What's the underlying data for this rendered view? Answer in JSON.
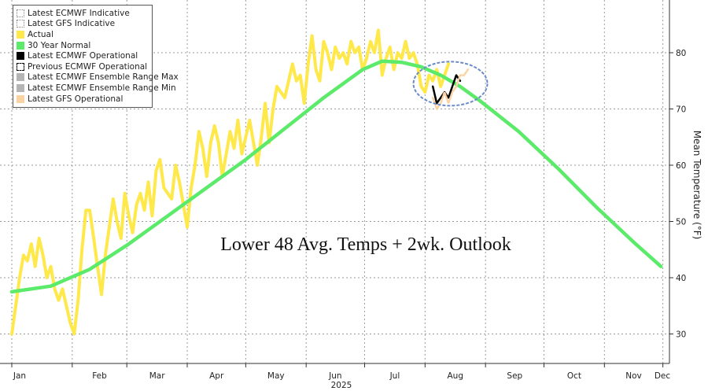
{
  "chart_data": {
    "type": "line",
    "title": "Lower 48 Avg. Temps + 2wk. Outlook",
    "ylabel": "Mean Temperature (°F)",
    "xlabel": "2025",
    "ylim": [
      24,
      89
    ],
    "yticks": [
      30,
      40,
      50,
      60,
      70,
      80
    ],
    "x_months": [
      "Jan",
      "Feb",
      "Mar",
      "Apr",
      "May",
      "Jun",
      "Jul",
      "Aug",
      "Sep",
      "Oct",
      "Nov",
      "Dec"
    ],
    "grid": true,
    "legend_position": "top-left",
    "legend": [
      {
        "label": "Latest ECMWF Indicative",
        "color": "#ffffff",
        "style": "dotted-outline"
      },
      {
        "label": "Latest GFS Indicative",
        "color": "#ffffff",
        "style": "dotted-outline"
      },
      {
        "label": "Actual",
        "color": "#ffe84a",
        "style": "fill"
      },
      {
        "label": "30 Year Normal",
        "color": "#5cea6a",
        "style": "fill"
      },
      {
        "label": "Latest ECMWF Operational",
        "color": "#000000",
        "style": "fill"
      },
      {
        "label": "Previous ECMWF Operational",
        "color": "#000000",
        "style": "dashed-outline"
      },
      {
        "label": "Latest ECMWF Ensemble Range Max",
        "color": "#b4b4b4",
        "style": "fill"
      },
      {
        "label": "Latest ECMWF Ensemble Range Min",
        "color": "#b4b4b4",
        "style": "fill"
      },
      {
        "label": "Latest GFS Operational",
        "color": "#fbd3a3",
        "style": "fill"
      }
    ],
    "series": [
      {
        "name": "Actual",
        "color": "#ffe84a",
        "x_days": [
          0,
          2,
          4,
          6,
          8,
          10,
          12,
          14,
          16,
          18,
          20,
          22,
          24,
          26,
          28,
          30,
          32,
          34,
          36,
          38,
          40,
          42,
          44,
          46,
          48,
          50,
          52,
          54,
          56,
          58,
          60,
          62,
          64,
          66,
          68,
          70,
          72,
          74,
          76,
          78,
          80,
          82,
          84,
          86,
          88,
          90,
          92,
          94,
          96,
          98,
          100,
          102,
          104,
          106,
          108,
          110,
          112,
          114,
          116,
          118,
          120,
          122,
          124,
          126,
          128,
          130,
          132,
          134,
          136,
          138,
          140,
          142,
          144,
          146,
          148,
          150,
          152,
          154,
          156,
          158,
          160,
          162,
          164,
          166,
          168,
          170,
          172,
          174,
          176,
          178,
          180,
          182,
          184,
          186,
          188,
          190,
          192,
          194,
          196,
          198,
          200,
          202,
          204,
          206,
          208,
          210,
          212,
          214,
          216,
          218,
          220,
          222,
          224
        ],
        "values": [
          30,
          35,
          40,
          44,
          43,
          46,
          42,
          47,
          44,
          40,
          42,
          38,
          36,
          38,
          35,
          32,
          30,
          36,
          45,
          52,
          52,
          47,
          42,
          37,
          44,
          49,
          54,
          50,
          47,
          55,
          51,
          48,
          53,
          55,
          52,
          57,
          51,
          59,
          61,
          56,
          55,
          54,
          60,
          57,
          53,
          49,
          56,
          60,
          66,
          63,
          58,
          64,
          67,
          64,
          58,
          62,
          66,
          63,
          68,
          62,
          65,
          68,
          64,
          60,
          65,
          71,
          64,
          70,
          74,
          73,
          72,
          75,
          78,
          75,
          76,
          71,
          78,
          83,
          77,
          75,
          82,
          80,
          77,
          81,
          79,
          80,
          78,
          82,
          80,
          81,
          77,
          79,
          82,
          80,
          84,
          76,
          79,
          81,
          77,
          80,
          79,
          82,
          79,
          80,
          78,
          74,
          73,
          76,
          75,
          77,
          74,
          76,
          78
        ],
        "note": "x_days = days since Jan 1 2025"
      },
      {
        "name": "30 Year Normal",
        "color": "#5cea6a",
        "x_days": [
          0,
          20,
          40,
          60,
          80,
          100,
          120,
          140,
          160,
          180,
          190,
          200,
          210,
          220,
          230,
          240,
          260,
          280,
          300,
          320,
          333
        ],
        "values": [
          37.5,
          38.5,
          41.5,
          46,
          51,
          56,
          61,
          66.5,
          72,
          77,
          78.5,
          78.3,
          77.5,
          76,
          74,
          71.5,
          66,
          59.5,
          52.5,
          46,
          42
        ]
      },
      {
        "name": "Latest ECMWF Operational",
        "color": "#000000",
        "x_days": [
          216,
          218,
          220,
          222,
          224,
          226,
          228,
          230
        ],
        "values": [
          74,
          71,
          72,
          73,
          72,
          74,
          76,
          75
        ]
      },
      {
        "name": "Latest GFS Operational",
        "color": "#fbd3a3",
        "x_days": [
          216,
          218,
          220,
          222,
          224,
          226,
          228,
          230,
          232,
          234
        ],
        "values": [
          72,
          70,
          71,
          73,
          71,
          73,
          74,
          76,
          76,
          77
        ]
      }
    ],
    "annotations": [
      {
        "type": "ellipse",
        "label": "",
        "center_day": 225,
        "center_value": 74.5,
        "color": "#6b8cc8"
      }
    ]
  }
}
